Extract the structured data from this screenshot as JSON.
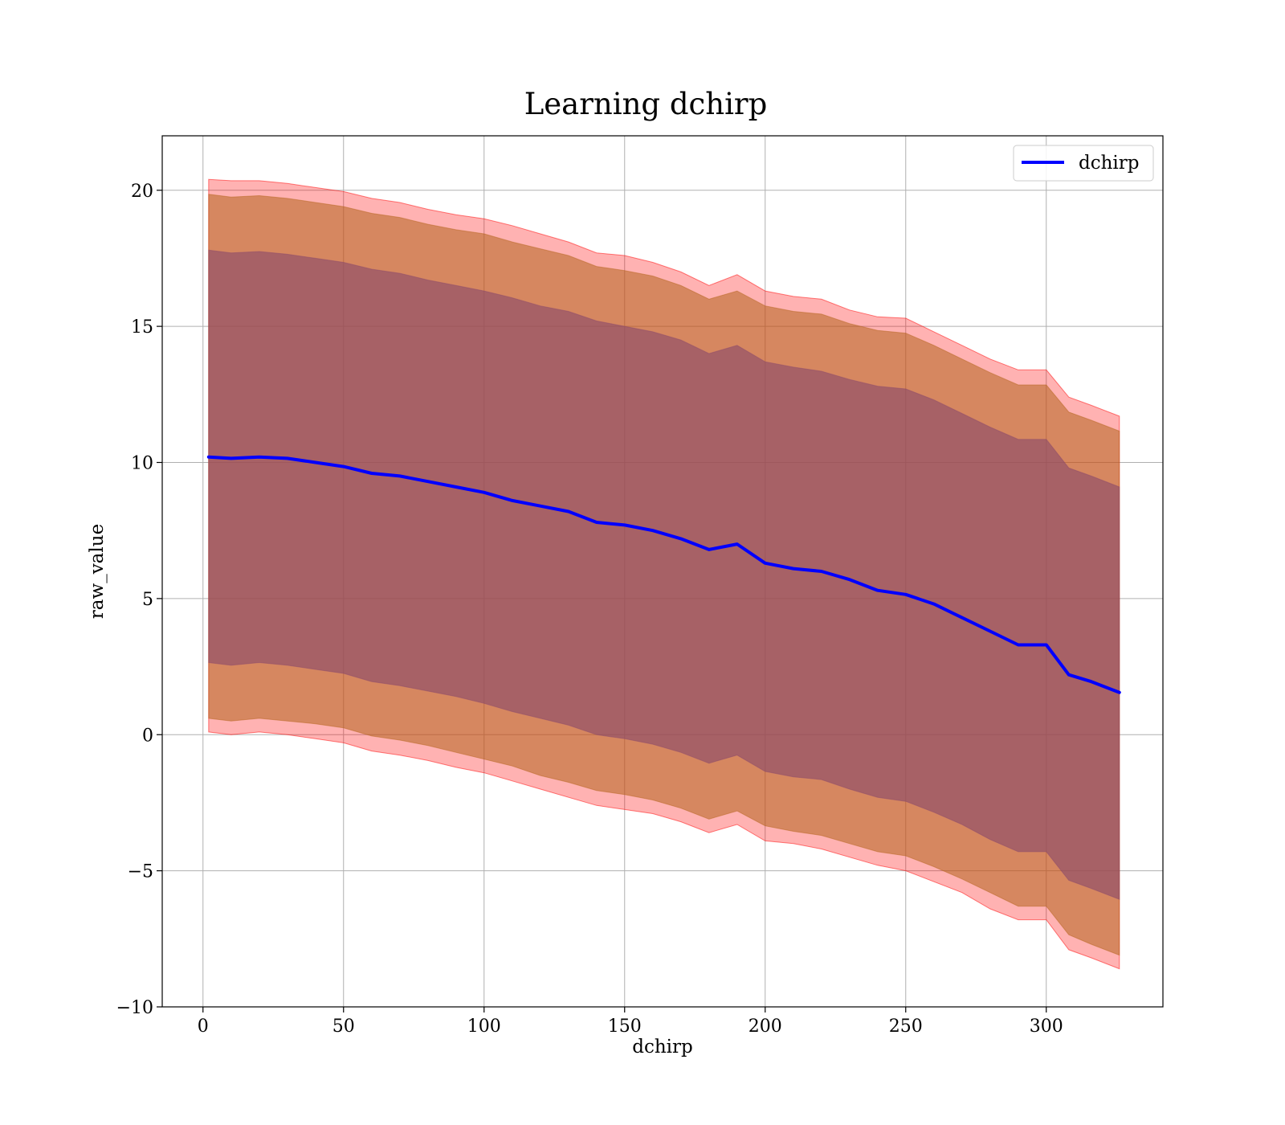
{
  "chart_data": {
    "type": "area",
    "title": "Learning dchirp",
    "xlabel": "dchirp",
    "ylabel": "raw_value",
    "xlim": [
      -14.5,
      341.5
    ],
    "ylim": [
      -10,
      22
    ],
    "x_ticks": [
      0,
      50,
      100,
      150,
      200,
      250,
      300
    ],
    "y_ticks": [
      -10,
      -5,
      0,
      5,
      10,
      15,
      20
    ],
    "x_tick_labels": [
      "0",
      "50",
      "100",
      "150",
      "200",
      "250",
      "300"
    ],
    "y_tick_labels": [
      "−10",
      "−5",
      "0",
      "5",
      "10",
      "15",
      "20"
    ],
    "grid": true,
    "legend": {
      "position": "top-right",
      "entries": [
        "dchirp"
      ]
    },
    "colors": {
      "line": "#0000ff",
      "band_outer": "#ff0000",
      "band_middle": "#b5651d",
      "band_inner": "#8b4a6b"
    },
    "x": [
      2,
      10,
      20,
      30,
      40,
      50,
      60,
      70,
      80,
      90,
      100,
      110,
      120,
      130,
      140,
      150,
      160,
      170,
      180,
      190,
      200,
      210,
      220,
      230,
      240,
      250,
      260,
      270,
      280,
      290,
      300,
      308,
      316,
      326
    ],
    "series": [
      {
        "name": "dchirp",
        "values": [
          10.2,
          10.15,
          10.2,
          10.15,
          10.0,
          9.85,
          9.6,
          9.5,
          9.3,
          9.1,
          8.9,
          8.6,
          8.4,
          8.2,
          7.8,
          7.7,
          7.5,
          7.2,
          6.8,
          7.0,
          6.3,
          6.1,
          6.0,
          5.7,
          5.3,
          5.15,
          4.8,
          4.3,
          3.8,
          3.3,
          3.3,
          2.2,
          1.95,
          1.55
        ]
      }
    ],
    "bands": [
      {
        "level": "outer",
        "upper": [
          20.4,
          20.35,
          20.35,
          20.25,
          20.1,
          19.95,
          19.7,
          19.55,
          19.3,
          19.1,
          18.95,
          18.7,
          18.4,
          18.1,
          17.7,
          17.6,
          17.35,
          17.0,
          16.5,
          16.9,
          16.3,
          16.1,
          16.0,
          15.6,
          15.35,
          15.3,
          14.8,
          14.3,
          13.8,
          13.4,
          13.4,
          12.4,
          12.1,
          11.7
        ],
        "lower": [
          0.1,
          0.0,
          0.1,
          0.0,
          -0.15,
          -0.3,
          -0.6,
          -0.75,
          -0.95,
          -1.2,
          -1.4,
          -1.7,
          -2.0,
          -2.3,
          -2.6,
          -2.75,
          -2.9,
          -3.2,
          -3.6,
          -3.3,
          -3.9,
          -4.0,
          -4.2,
          -4.5,
          -4.8,
          -5.0,
          -5.4,
          -5.8,
          -6.4,
          -6.8,
          -6.8,
          -7.9,
          -8.2,
          -8.6
        ]
      },
      {
        "level": "middle",
        "upper": [
          19.85,
          19.75,
          19.8,
          19.7,
          19.55,
          19.4,
          19.15,
          19.0,
          18.75,
          18.55,
          18.4,
          18.1,
          17.85,
          17.6,
          17.2,
          17.05,
          16.85,
          16.5,
          16.0,
          16.3,
          15.75,
          15.55,
          15.45,
          15.1,
          14.85,
          14.75,
          14.3,
          13.8,
          13.3,
          12.85,
          12.85,
          11.85,
          11.55,
          11.15
        ],
        "lower": [
          0.6,
          0.5,
          0.6,
          0.5,
          0.4,
          0.25,
          -0.05,
          -0.2,
          -0.4,
          -0.65,
          -0.9,
          -1.15,
          -1.5,
          -1.75,
          -2.05,
          -2.2,
          -2.4,
          -2.7,
          -3.1,
          -2.8,
          -3.35,
          -3.55,
          -3.7,
          -4.0,
          -4.3,
          -4.45,
          -4.85,
          -5.3,
          -5.8,
          -6.3,
          -6.3,
          -7.35,
          -7.7,
          -8.1
        ]
      },
      {
        "level": "inner",
        "upper": [
          17.8,
          17.7,
          17.75,
          17.65,
          17.5,
          17.35,
          17.1,
          16.95,
          16.7,
          16.5,
          16.3,
          16.05,
          15.75,
          15.55,
          15.2,
          15.0,
          14.8,
          14.5,
          14.0,
          14.3,
          13.7,
          13.5,
          13.35,
          13.05,
          12.8,
          12.7,
          12.3,
          11.8,
          11.3,
          10.85,
          10.85,
          9.8,
          9.5,
          9.1
        ],
        "lower": [
          2.65,
          2.55,
          2.65,
          2.55,
          2.4,
          2.25,
          1.95,
          1.8,
          1.6,
          1.4,
          1.15,
          0.85,
          0.6,
          0.35,
          0.0,
          -0.15,
          -0.35,
          -0.65,
          -1.05,
          -0.75,
          -1.35,
          -1.55,
          -1.65,
          -2.0,
          -2.3,
          -2.45,
          -2.85,
          -3.3,
          -3.85,
          -4.3,
          -4.3,
          -5.35,
          -5.65,
          -6.05
        ]
      }
    ]
  }
}
